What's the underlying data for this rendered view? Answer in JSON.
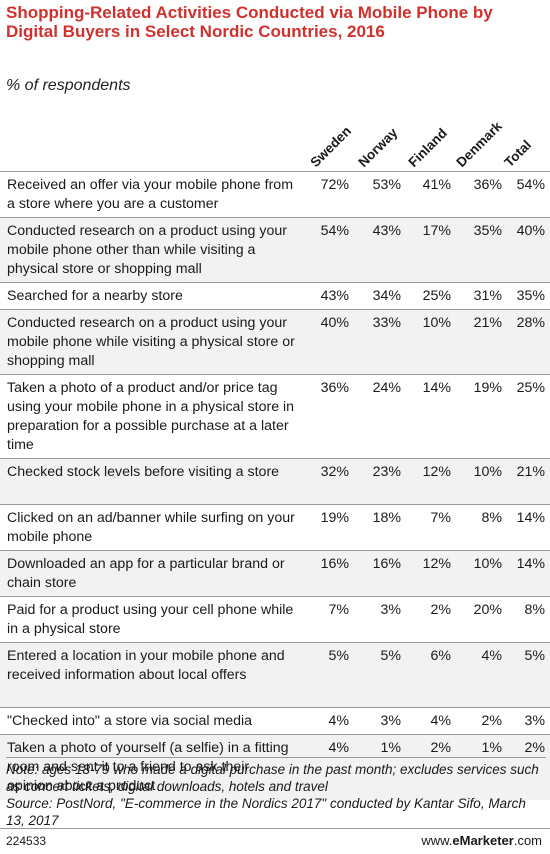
{
  "chart_data": {
    "type": "table",
    "title": "Shopping-Related Activities Conducted via Mobile Phone by Digital Buyers in Select Nordic Countries, 2016",
    "subtitle": "% of respondents",
    "columns": [
      "Sweden",
      "Norway",
      "Finland",
      "Denmark",
      "Total"
    ],
    "rows": [
      {
        "label": "Received an offer via your mobile phone from a store where you are a customer",
        "values": [
          "72%",
          "53%",
          "41%",
          "36%",
          "54%"
        ]
      },
      {
        "label": "Conducted research on a product using your mobile phone other than while visiting a physical store or shopping mall",
        "values": [
          "54%",
          "43%",
          "17%",
          "35%",
          "40%"
        ]
      },
      {
        "label": "Searched for a nearby store",
        "values": [
          "43%",
          "34%",
          "25%",
          "31%",
          "35%"
        ]
      },
      {
        "label": "Conducted research on a product using your mobile phone while visiting a physical store or shopping mall",
        "values": [
          "40%",
          "33%",
          "10%",
          "21%",
          "28%"
        ]
      },
      {
        "label": "Taken a photo of a product and/or price tag using your mobile phone in a physical store in preparation for a possible purchase at a later time",
        "values": [
          "36%",
          "24%",
          "14%",
          "19%",
          "25%"
        ]
      },
      {
        "label": "Checked stock levels before visiting a store",
        "values": [
          "32%",
          "23%",
          "12%",
          "10%",
          "21%"
        ]
      },
      {
        "label": "Clicked on an ad/banner while surfing on your mobile phone",
        "values": [
          "19%",
          "18%",
          "7%",
          "8%",
          "14%"
        ]
      },
      {
        "label": "Downloaded an app for a particular brand or chain store",
        "values": [
          "16%",
          "16%",
          "12%",
          "10%",
          "14%"
        ]
      },
      {
        "label": "Paid for a product using your cell phone while in a physical store",
        "values": [
          "7%",
          "3%",
          "2%",
          "20%",
          "8%"
        ]
      },
      {
        "label": "Entered a location in your mobile phone and received information about local offers",
        "values": [
          "5%",
          "5%",
          "6%",
          "4%",
          "5%"
        ]
      },
      {
        "label": "\"Checked into\" a store via social media",
        "values": [
          "4%",
          "3%",
          "4%",
          "2%",
          "3%"
        ]
      },
      {
        "label": "Taken a photo of yourself (a selfie) in a fitting room and sent it to a friend to ask their opinion about a product",
        "values": [
          "4%",
          "1%",
          "2%",
          "1%",
          "2%"
        ]
      }
    ],
    "note": "Note: ages 18-79 who made a digital purchase in the past month; excludes services such as concert tickets, digital downloads, hotels and travel",
    "source": "Source: PostNord, \"E-commerce in the Nordics 2017\" conducted by Kantar Sifo, March 13, 2017"
  },
  "footer": {
    "id": "224533",
    "brand_prefix": "www.",
    "brand_bold": "eMarketer",
    "brand_suffix": ".com"
  },
  "colors": {
    "title": "#d0312d",
    "alt_row": "#f2f2f2",
    "rule": "#9a9a9a"
  }
}
